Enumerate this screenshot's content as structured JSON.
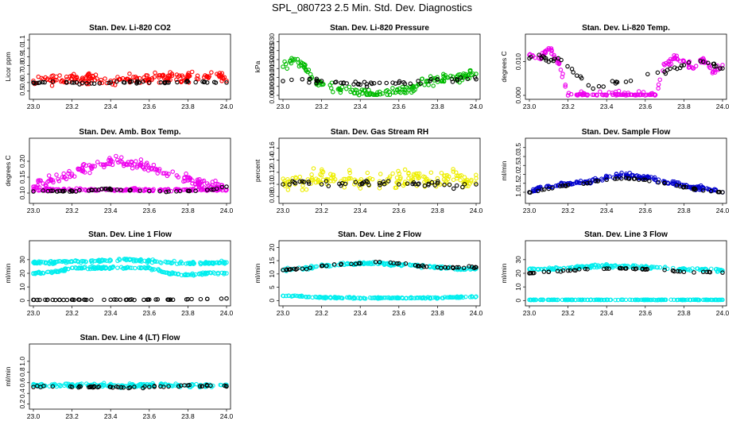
{
  "title": "SPL_080723  2.5 Min. Std. Dev. Diagnostics",
  "chart_data": [
    {
      "type": "scatter",
      "title": "Stan. Dev. Li-820 CO2",
      "ylabel": "Licor ppm",
      "xlim": [
        23.0,
        24.0
      ],
      "ylim": [
        0.45,
        1.12
      ],
      "xticks": [
        "23.0",
        "23.2",
        "23.4",
        "23.6",
        "23.8",
        "24.0"
      ],
      "yticks": [
        "0.5",
        "0.6",
        "0.7",
        "0.8",
        "0.9",
        "1.0",
        "1.1"
      ],
      "series": [
        {
          "color": "#ff0000",
          "x": [
            23.0,
            23.05,
            23.1,
            23.15,
            23.2,
            23.25,
            23.3,
            23.35,
            23.4,
            23.45,
            23.5,
            23.55,
            23.6,
            23.65,
            23.7,
            23.75,
            23.8,
            23.85,
            23.9,
            23.95,
            24.0
          ],
          "y": [
            0.62,
            0.64,
            0.63,
            0.62,
            0.64,
            0.63,
            0.65,
            0.63,
            0.62,
            0.64,
            0.63,
            0.65,
            0.64,
            0.66,
            0.65,
            0.67,
            0.66,
            0.68,
            0.67,
            0.7,
            0.62
          ],
          "spread": 0.09
        },
        {
          "color": "#000000",
          "x": [
            23.0,
            23.1,
            23.2,
            23.3,
            23.4,
            23.5,
            23.6,
            23.7,
            23.8,
            23.9,
            24.0
          ],
          "y": [
            0.6,
            0.61,
            0.6,
            0.59,
            0.6,
            0.61,
            0.6,
            0.6,
            0.61,
            0.6,
            0.6
          ],
          "spread": 0.02
        }
      ]
    },
    {
      "type": "scatter",
      "title": "Stan. Dev. Li-820 Pressure",
      "ylabel": "kPa",
      "xlim": [
        23.0,
        24.0
      ],
      "ylim": [
        0.0,
        0.032
      ],
      "xticks": [
        "23.0",
        "23.2",
        "23.4",
        "23.6",
        "23.8",
        "24.0"
      ],
      "yticks": [
        "0.000",
        "0.005",
        "0.010",
        "0.015",
        "0.020",
        "0.025",
        "0.030"
      ],
      "series": [
        {
          "color": "#00bb00",
          "x": [
            23.0,
            23.05,
            23.1,
            23.15,
            23.2,
            23.25,
            23.3,
            23.35,
            23.4,
            23.45,
            23.5,
            23.55,
            23.6,
            23.65,
            23.7,
            23.75,
            23.8,
            23.85,
            23.9,
            23.95,
            24.0
          ],
          "y": [
            0.016,
            0.02,
            0.018,
            0.01,
            0.006,
            0.004,
            0.003,
            0.002,
            0.002,
            0.001,
            0.002,
            0.002,
            0.002,
            0.003,
            0.006,
            0.008,
            0.009,
            0.01,
            0.01,
            0.011,
            0.012
          ],
          "spread": 0.004
        },
        {
          "color": "#000000",
          "x": [
            23.0,
            23.1,
            23.2,
            23.3,
            23.4,
            23.5,
            23.6,
            23.7,
            23.8,
            23.9,
            24.0
          ],
          "y": [
            0.008,
            0.009,
            0.008,
            0.007,
            0.006,
            0.007,
            0.007,
            0.008,
            0.009,
            0.009,
            0.009
          ],
          "spread": 0.002
        }
      ]
    },
    {
      "type": "scatter",
      "title": "Stan. Dev. Li-820 Temp.",
      "ylabel": "degrees C",
      "xlim": [
        23.0,
        24.0
      ],
      "ylim": [
        0.0,
        0.017
      ],
      "xticks": [
        "23.0",
        "23.2",
        "23.4",
        "23.6",
        "23.8",
        "24.0"
      ],
      "yticks": [
        "0.000",
        "0.010"
      ],
      "series": [
        {
          "color": "#ee00ee",
          "x": [
            23.0,
            23.05,
            23.1,
            23.15,
            23.2,
            23.25,
            23.3,
            23.35,
            23.4,
            23.45,
            23.5,
            23.55,
            23.6,
            23.65,
            23.7,
            23.75,
            23.8,
            23.85,
            23.9,
            23.95,
            24.0
          ],
          "y": [
            0.012,
            0.011,
            0.014,
            0.01,
            0.0,
            0.0,
            0.0,
            0.0,
            0.0,
            0.0,
            0.0,
            0.0,
            0.0,
            0.0,
            0.009,
            0.011,
            0.01,
            0.008,
            0.011,
            0.007,
            0.009
          ],
          "spread": 0.0015
        },
        {
          "color": "#000000",
          "x": [
            23.0,
            23.05,
            23.1,
            23.15,
            23.33,
            23.45,
            23.5,
            23.7,
            23.8,
            23.9,
            24.0
          ],
          "y": [
            0.011,
            0.012,
            0.01,
            0.011,
            0.002,
            0.004,
            0.004,
            0.007,
            0.009,
            0.01,
            0.008
          ],
          "spread": 0.001
        }
      ]
    },
    {
      "type": "scatter",
      "title": "Stan. Dev. Amb. Box Temp.",
      "ylabel": "degrees C",
      "xlim": [
        23.0,
        24.0
      ],
      "ylim": [
        0.08,
        0.26
      ],
      "xticks": [
        "23.0",
        "23.2",
        "23.4",
        "23.6",
        "23.8",
        "24.0"
      ],
      "yticks": [
        "0.10",
        "0.15",
        "0.20"
      ],
      "series": [
        {
          "color": "#ee00ee",
          "x": [
            23.0,
            23.05,
            23.1,
            23.15,
            23.2,
            23.25,
            23.3,
            23.35,
            23.4,
            23.45,
            23.5,
            23.55,
            23.6,
            23.65,
            23.7,
            23.75,
            23.8,
            23.85,
            23.9,
            23.95,
            24.0
          ],
          "y": [
            0.12,
            0.13,
            0.14,
            0.15,
            0.16,
            0.17,
            0.18,
            0.19,
            0.2,
            0.2,
            0.19,
            0.19,
            0.18,
            0.17,
            0.16,
            0.15,
            0.14,
            0.13,
            0.13,
            0.12,
            0.12
          ],
          "spread": 0.025
        },
        {
          "color": "#ee00ee",
          "x": [
            23.0,
            23.1,
            23.2,
            23.3,
            23.4,
            23.5,
            23.6,
            23.7,
            23.8,
            23.9,
            24.0
          ],
          "y": [
            0.11,
            0.11,
            0.11,
            0.11,
            0.11,
            0.11,
            0.11,
            0.11,
            0.11,
            0.11,
            0.11
          ],
          "spread": 0.006
        },
        {
          "color": "#000000",
          "x": [
            23.0,
            23.1,
            23.2,
            23.3,
            23.4,
            23.5,
            23.6,
            23.7,
            23.8,
            23.9,
            24.0
          ],
          "y": [
            0.105,
            0.107,
            0.106,
            0.11,
            0.112,
            0.108,
            0.106,
            0.105,
            0.107,
            0.11,
            0.12
          ],
          "spread": 0.004
        }
      ]
    },
    {
      "type": "scatter",
      "title": "Stan. Dev. Gas Stream RH",
      "ylabel": "percent",
      "xlim": [
        23.0,
        24.0
      ],
      "ylim": [
        0.075,
        0.17
      ],
      "xticks": [
        "23.0",
        "23.2",
        "23.4",
        "23.6",
        "23.8",
        "24.0"
      ],
      "yticks": [
        "0.08",
        "0.10",
        "0.12",
        "0.14",
        "0.16"
      ],
      "series": [
        {
          "color": "#eeee00",
          "x": [
            23.0,
            23.05,
            23.1,
            23.15,
            23.2,
            23.25,
            23.3,
            23.35,
            23.4,
            23.45,
            23.5,
            23.55,
            23.6,
            23.65,
            23.7,
            23.75,
            23.8,
            23.85,
            23.9,
            23.95,
            24.0
          ],
          "y": [
            0.1,
            0.11,
            0.105,
            0.11,
            0.115,
            0.11,
            0.105,
            0.11,
            0.105,
            0.11,
            0.105,
            0.11,
            0.105,
            0.11,
            0.11,
            0.105,
            0.11,
            0.115,
            0.11,
            0.105,
            0.11
          ],
          "spread": 0.022
        },
        {
          "color": "#000000",
          "x": [
            23.0,
            23.1,
            23.2,
            23.3,
            23.4,
            23.5,
            23.6,
            23.7,
            23.8,
            23.9,
            24.0
          ],
          "y": [
            0.1,
            0.105,
            0.1,
            0.098,
            0.1,
            0.102,
            0.1,
            0.1,
            0.102,
            0.098,
            0.1
          ],
          "spread": 0.008
        }
      ]
    },
    {
      "type": "scatter",
      "title": "Stan. Dev. Sample Flow",
      "ylabel": "ml/min",
      "xlim": [
        23.0,
        24.0
      ],
      "ylim": [
        0.6,
        3.8
      ],
      "xticks": [
        "23.0",
        "23.2",
        "23.4",
        "23.6",
        "23.8",
        "24.0"
      ],
      "yticks": [
        "1.0",
        "1.5",
        "2.0",
        "2.5",
        "3.0",
        "3.5"
      ],
      "series": [
        {
          "color": "#0000cc",
          "x": [
            23.0,
            23.05,
            23.1,
            23.15,
            23.2,
            23.25,
            23.3,
            23.35,
            23.4,
            23.45,
            23.5,
            23.55,
            23.6,
            23.65,
            23.7,
            23.75,
            23.8,
            23.85,
            23.9,
            23.95,
            24.0
          ],
          "y": [
            1.0,
            1.2,
            1.3,
            1.4,
            1.5,
            1.55,
            1.6,
            1.7,
            1.8,
            1.9,
            1.95,
            1.9,
            1.8,
            1.7,
            1.6,
            1.5,
            1.4,
            1.3,
            1.2,
            1.1,
            1.0
          ],
          "spread": 0.2
        },
        {
          "color": "#000000",
          "x": [
            23.0,
            23.1,
            23.2,
            23.3,
            23.4,
            23.5,
            23.6,
            23.7,
            23.8,
            23.9,
            24.0
          ],
          "y": [
            1.0,
            1.2,
            1.4,
            1.5,
            1.7,
            1.8,
            1.7,
            1.5,
            1.3,
            1.1,
            1.0
          ],
          "spread": 0.06
        }
      ]
    },
    {
      "type": "scatter",
      "title": "Stan. Dev. Line 1 Flow",
      "ylabel": "ml/min",
      "xlim": [
        23.0,
        24.0
      ],
      "ylim": [
        -1,
        41
      ],
      "xticks": [
        "23.0",
        "23.2",
        "23.4",
        "23.6",
        "23.8",
        "24.0"
      ],
      "yticks": [
        "0",
        "10",
        "20",
        "30"
      ],
      "series": [
        {
          "color": "#00eeee",
          "x": [
            23.0,
            23.1,
            23.2,
            23.3,
            23.4,
            23.5,
            23.6,
            23.7,
            23.8,
            23.9,
            24.0
          ],
          "y": [
            28,
            28,
            28.5,
            29,
            29.5,
            30,
            29,
            28,
            27.5,
            27.5,
            28
          ],
          "spread": 1.5
        },
        {
          "color": "#00eeee",
          "x": [
            23.0,
            23.1,
            23.15,
            23.2,
            23.6,
            23.65,
            23.7,
            23.8,
            23.9,
            24.0
          ],
          "y": [
            20,
            21,
            22,
            24,
            24,
            22,
            20,
            19,
            20,
            20
          ],
          "spread": 1.2
        },
        {
          "color": "#000000",
          "x": [
            23.0,
            23.1,
            23.2,
            23.3,
            23.4,
            23.5,
            23.6,
            23.7,
            23.8,
            23.9,
            24.0
          ],
          "y": [
            0.5,
            0.5,
            0.6,
            0.6,
            0.6,
            0.6,
            0.7,
            0.6,
            1.0,
            1.2,
            1.5
          ],
          "spread": 0.3
        }
      ]
    },
    {
      "type": "scatter",
      "title": "Stan. Dev. Line 2 Flow",
      "ylabel": "ml/min",
      "xlim": [
        23.0,
        24.0
      ],
      "ylim": [
        -0.5,
        21
      ],
      "xticks": [
        "23.0",
        "23.2",
        "23.4",
        "23.6",
        "23.8",
        "24.0"
      ],
      "yticks": [
        "0",
        "5",
        "10",
        "15",
        "20"
      ],
      "series": [
        {
          "color": "#00eeee",
          "x": [
            23.0,
            23.1,
            23.2,
            23.3,
            23.4,
            23.5,
            23.6,
            23.7,
            23.8,
            23.9,
            24.0
          ],
          "y": [
            11.5,
            12,
            13,
            13.5,
            14,
            14,
            13.5,
            13,
            12.5,
            12,
            12
          ],
          "spread": 0.8
        },
        {
          "color": "#00eeee",
          "x": [
            23.0,
            23.1,
            23.2,
            23.3,
            23.4,
            23.5,
            23.6,
            23.7,
            23.8,
            23.9,
            24.0
          ],
          "y": [
            1.8,
            1.5,
            1.2,
            1.0,
            1.0,
            1.0,
            1.0,
            1.0,
            1.0,
            1.2,
            1.5
          ],
          "spread": 0.4
        },
        {
          "color": "#000000",
          "x": [
            23.0,
            23.1,
            23.2,
            23.3,
            23.4,
            23.5,
            23.6,
            23.7,
            23.8,
            23.9,
            24.0
          ],
          "y": [
            11.5,
            12,
            13,
            13.5,
            14,
            14.5,
            14,
            13,
            12.5,
            12.5,
            12.5
          ],
          "spread": 0.5
        }
      ]
    },
    {
      "type": "scatter",
      "title": "Stan. Dev. Line 3 Flow",
      "ylabel": "ml/min",
      "xlim": [
        23.0,
        24.0
      ],
      "ylim": [
        -1,
        41
      ],
      "xticks": [
        "23.0",
        "23.2",
        "23.4",
        "23.6",
        "23.8",
        "24.0"
      ],
      "yticks": [
        "0",
        "10",
        "20",
        "30"
      ],
      "series": [
        {
          "color": "#00eeee",
          "x": [
            23.0,
            23.1,
            23.2,
            23.3,
            23.4,
            23.5,
            23.6,
            23.7,
            23.8,
            23.9,
            24.0
          ],
          "y": [
            23,
            23,
            24,
            25,
            25.5,
            25,
            24.5,
            24,
            23,
            23,
            22
          ],
          "spread": 1.5
        },
        {
          "color": "#00eeee",
          "x": [
            23.0,
            23.1,
            23.2,
            23.3,
            23.4,
            23.5,
            23.6,
            23.7,
            23.8,
            23.9,
            24.0
          ],
          "y": [
            0.5,
            0.5,
            0.5,
            0.5,
            0.5,
            0.5,
            0.5,
            0.5,
            0.5,
            0.5,
            0.5
          ],
          "spread": 0.2
        },
        {
          "color": "#000000",
          "x": [
            23.0,
            23.1,
            23.2,
            23.3,
            23.4,
            23.5,
            23.6,
            23.7,
            23.8,
            23.9,
            24.0
          ],
          "y": [
            20,
            21,
            22,
            23,
            23.5,
            23.5,
            23,
            22.5,
            21,
            21,
            20.5
          ],
          "spread": 0.6
        }
      ]
    },
    {
      "type": "scatter",
      "title": "Stan. Dev. Line 4 (LT) Flow",
      "ylabel": "ml/min",
      "xlim": [
        23.0,
        24.0
      ],
      "ylim": [
        0.18,
        1.25
      ],
      "xticks": [
        "23.0",
        "23.2",
        "23.4",
        "23.6",
        "23.8",
        "24.0"
      ],
      "yticks": [
        "0.2",
        "0.4",
        "0.6",
        "0.8",
        "1.0"
      ],
      "series": [
        {
          "color": "#00eeee",
          "x": [
            23.0,
            23.1,
            23.2,
            23.3,
            23.4,
            23.5,
            23.6,
            23.7,
            23.8,
            23.9,
            24.0
          ],
          "y": [
            0.55,
            0.55,
            0.55,
            0.56,
            0.55,
            0.54,
            0.55,
            0.56,
            0.55,
            0.55,
            0.56
          ],
          "spread": 0.05
        },
        {
          "color": "#000000",
          "x": [
            23.0,
            23.1,
            23.2,
            23.3,
            23.4,
            23.5,
            23.6,
            23.7,
            23.8,
            23.9,
            24.0
          ],
          "y": [
            0.52,
            0.53,
            0.52,
            0.53,
            0.52,
            0.51,
            0.52,
            0.53,
            0.55,
            0.54,
            0.53
          ],
          "spread": 0.03
        }
      ]
    }
  ]
}
